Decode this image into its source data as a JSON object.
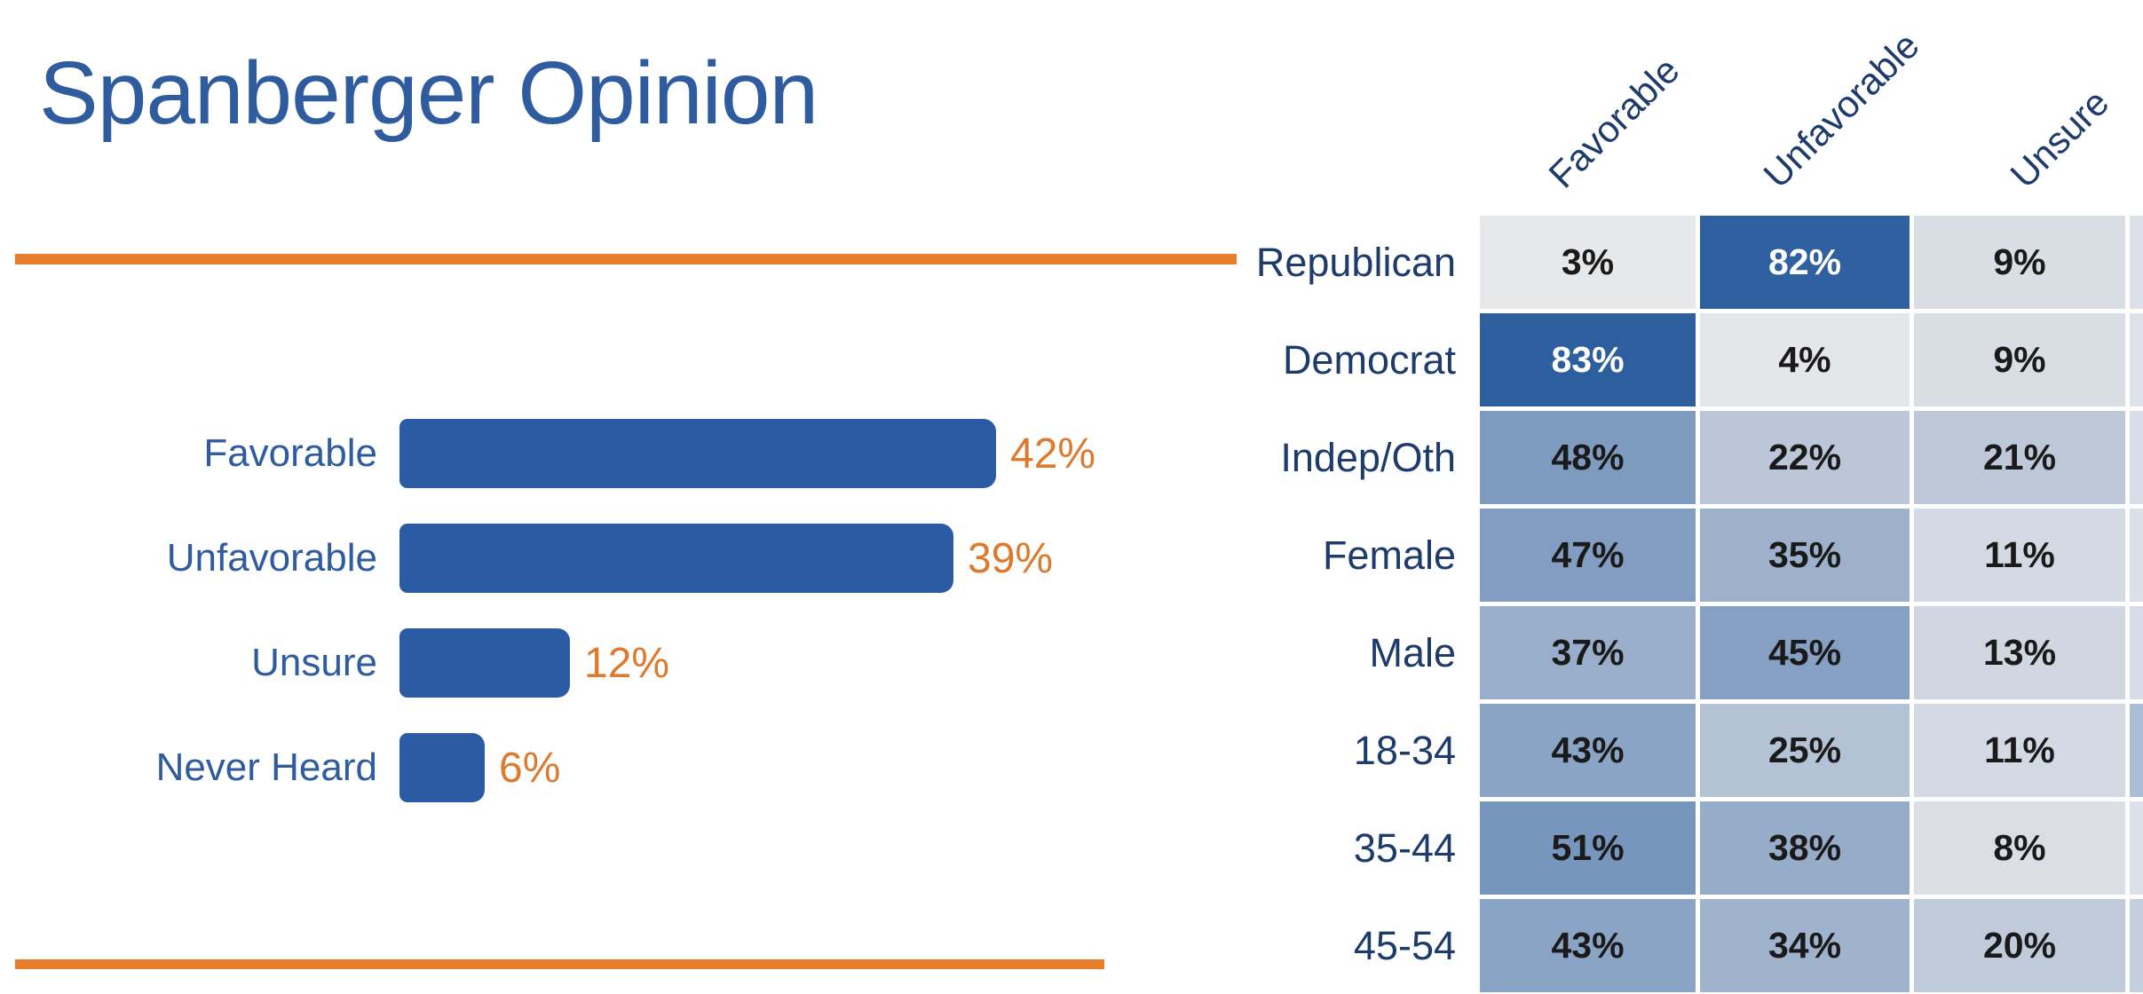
{
  "title": "Spanberger Opinion",
  "colors": {
    "title_blue": "#2E5C9E",
    "bar_blue": "#2B5BA3",
    "value_orange": "#DD7A2E",
    "rule_orange": "#E87D2B",
    "label_navy": "#1E3C6B",
    "cell_text_dark": "#1A1A1A",
    "cell_text_light": "#FFFFFF",
    "background": "#FFFFFF"
  },
  "chart_data": [
    {
      "type": "bar",
      "title": "Spanberger Opinion",
      "orientation": "horizontal",
      "categories": [
        "Favorable",
        "Unfavorable",
        "Unsure",
        "Never Heard"
      ],
      "values": [
        42,
        39,
        12,
        6
      ],
      "value_labels": [
        "42%",
        "39%",
        "12%",
        "6%"
      ],
      "unit": "%",
      "bar_color": "#2B5BA3",
      "category_label_color": "#2E5C9E",
      "value_label_color": "#DD7A2E",
      "axis": "none",
      "grid": false,
      "legend": false
    },
    {
      "type": "heatmap",
      "columns": [
        "Favorable",
        "Unfavorable",
        "Unsure"
      ],
      "rows": [
        "Republican",
        "Democrat",
        "Indep/Oth",
        "Female",
        "Male",
        "18-34",
        "35-44",
        "45-54"
      ],
      "values": [
        [
          3,
          82,
          9
        ],
        [
          83,
          4,
          9
        ],
        [
          48,
          22,
          21
        ],
        [
          47,
          35,
          11
        ],
        [
          37,
          45,
          13
        ],
        [
          43,
          25,
          11
        ],
        [
          51,
          38,
          8
        ],
        [
          43,
          34,
          20
        ]
      ],
      "unit": "%",
      "color_scale": {
        "min_value": 3,
        "max_value": 83,
        "low_color": "#E7E8EA",
        "high_color": "#2D5F9F"
      },
      "white_text_threshold": 0.85,
      "clipped_fourth_column_colors": [
        "#DCE1E9",
        "#DDE2EA",
        "#D8DEE7",
        "#DAE0E8",
        "#D7DDE6",
        "#A9BDD7",
        "#DBE0E9",
        "#C3CFDF"
      ],
      "grid": false,
      "legend": false
    }
  ]
}
